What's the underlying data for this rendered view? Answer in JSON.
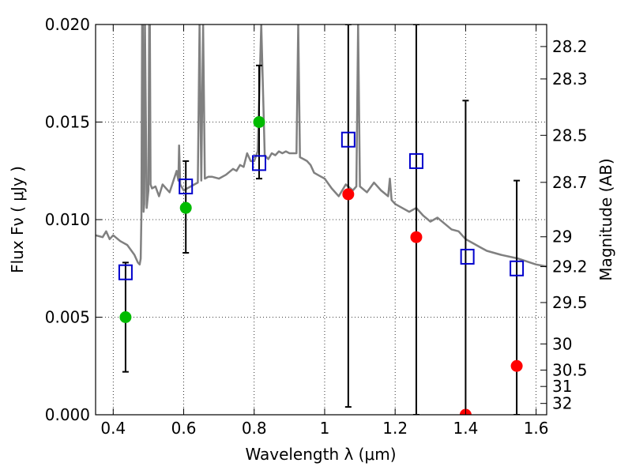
{
  "chart_data": {
    "type": "scatter",
    "title": "",
    "xlabel": "Wavelength  λ (μm)",
    "ylabel": "Flux  Fν  ( μJy )",
    "ylabel_right": "Magnitude (AB)",
    "xlim": [
      0.35,
      1.63
    ],
    "ylim": [
      0.0,
      0.02
    ],
    "grid": true,
    "x_ticks": [
      0.4,
      0.6,
      0.8,
      1.0,
      1.2,
      1.4,
      1.6
    ],
    "x_tick_labels": [
      "0.4",
      "0.6",
      "0.8",
      "1",
      "1.2",
      "1.4",
      "1.6"
    ],
    "y_ticks": [
      0.0,
      0.005,
      0.01,
      0.015,
      0.02
    ],
    "y_tick_labels": [
      "0.000",
      "0.005",
      "0.010",
      "0.015",
      "0.020"
    ],
    "right_ticks": [
      {
        "label": "28.2",
        "flux": 0.01887
      },
      {
        "label": "28.3",
        "flux": 0.01721
      },
      {
        "label": "28.5",
        "flux": 0.01432
      },
      {
        "label": "28.7",
        "flux": 0.01191
      },
      {
        "label": "29",
        "flux": 0.00912
      },
      {
        "label": "29.2",
        "flux": 0.00759
      },
      {
        "label": "29.5",
        "flux": 0.00575
      },
      {
        "label": "30",
        "flux": 0.00363
      },
      {
        "label": "30.5",
        "flux": 0.00229
      },
      {
        "label": "31",
        "flux": 0.00145
      },
      {
        "label": "32",
        "flux": 0.00058
      }
    ],
    "series": [
      {
        "name": "model spectrum",
        "kind": "line",
        "color": "#808080",
        "x": [
          0.35,
          0.37,
          0.38,
          0.39,
          0.4,
          0.42,
          0.44,
          0.46,
          0.47,
          0.475,
          0.478,
          0.48,
          0.482,
          0.484,
          0.486,
          0.488,
          0.49,
          0.495,
          0.5,
          0.502,
          0.504,
          0.506,
          0.51,
          0.52,
          0.53,
          0.54,
          0.56,
          0.58,
          0.585,
          0.587,
          0.59,
          0.6,
          0.62,
          0.64,
          0.645,
          0.65,
          0.655,
          0.66,
          0.67,
          0.68,
          0.7,
          0.72,
          0.74,
          0.75,
          0.76,
          0.77,
          0.78,
          0.79,
          0.8,
          0.81,
          0.82,
          0.83,
          0.84,
          0.85,
          0.86,
          0.87,
          0.88,
          0.89,
          0.9,
          0.92,
          0.925,
          0.93,
          0.94,
          0.95,
          0.96,
          0.97,
          0.98,
          0.99,
          1.0,
          1.02,
          1.04,
          1.06,
          1.08,
          1.09,
          1.095,
          1.1,
          1.12,
          1.14,
          1.16,
          1.18,
          1.185,
          1.19,
          1.2,
          1.22,
          1.24,
          1.26,
          1.28,
          1.3,
          1.32,
          1.34,
          1.36,
          1.38,
          1.4,
          1.42,
          1.44,
          1.46,
          1.5,
          1.55,
          1.6,
          1.63
        ],
        "y": [
          0.0092,
          0.0091,
          0.0094,
          0.009,
          0.0092,
          0.0089,
          0.0087,
          0.0082,
          0.0078,
          0.0077,
          0.008,
          0.0102,
          0.02,
          0.02,
          0.0104,
          0.0108,
          0.02,
          0.0106,
          0.0115,
          0.02,
          0.02,
          0.0118,
          0.0116,
          0.0117,
          0.0112,
          0.0118,
          0.0114,
          0.0125,
          0.012,
          0.0138,
          0.0118,
          0.0115,
          0.0117,
          0.0119,
          0.02,
          0.012,
          0.02,
          0.0121,
          0.0122,
          0.0122,
          0.0121,
          0.0123,
          0.0126,
          0.0125,
          0.0128,
          0.0127,
          0.0134,
          0.013,
          0.013,
          0.0135,
          0.02,
          0.0133,
          0.0131,
          0.0134,
          0.0133,
          0.0135,
          0.0134,
          0.0135,
          0.0134,
          0.0134,
          0.02,
          0.0132,
          0.0131,
          0.013,
          0.0128,
          0.0124,
          0.0123,
          0.0122,
          0.0121,
          0.0116,
          0.0112,
          0.0118,
          0.0115,
          0.0117,
          0.02,
          0.0117,
          0.0114,
          0.0119,
          0.0115,
          0.0112,
          0.0121,
          0.011,
          0.0108,
          0.0106,
          0.0104,
          0.0106,
          0.0102,
          0.0099,
          0.0101,
          0.0098,
          0.0095,
          0.0094,
          0.009,
          0.0088,
          0.0086,
          0.0084,
          0.0082,
          0.008,
          0.0077,
          0.0076
        ]
      },
      {
        "name": "observed (green)",
        "kind": "marker",
        "color": "#00bb00",
        "x": [
          0.435,
          0.606,
          0.814
        ],
        "y": [
          0.005,
          0.0106,
          0.015
        ],
        "yerr_low": [
          0.0028,
          0.0023,
          0.0029
        ],
        "yerr_high": [
          0.0028,
          0.0024,
          0.0029
        ]
      },
      {
        "name": "observed (red)",
        "kind": "marker",
        "color": "#ff0000",
        "x": [
          1.067,
          1.26,
          1.4,
          1.545
        ],
        "y": [
          0.0113,
          0.0091,
          0.0,
          0.0025
        ],
        "yerr_low": [
          0.0109,
          0.0091,
          0.0,
          0.0025
        ],
        "yerr_high": [
          0.0087,
          0.0109,
          0.0161,
          0.0095
        ]
      },
      {
        "name": "model photometry",
        "kind": "square",
        "color": "#0000cc",
        "x": [
          0.435,
          0.606,
          0.814,
          1.067,
          1.26,
          1.405,
          1.545
        ],
        "y": [
          0.0073,
          0.0117,
          0.0129,
          0.0141,
          0.013,
          0.0081,
          0.0075
        ]
      }
    ]
  }
}
